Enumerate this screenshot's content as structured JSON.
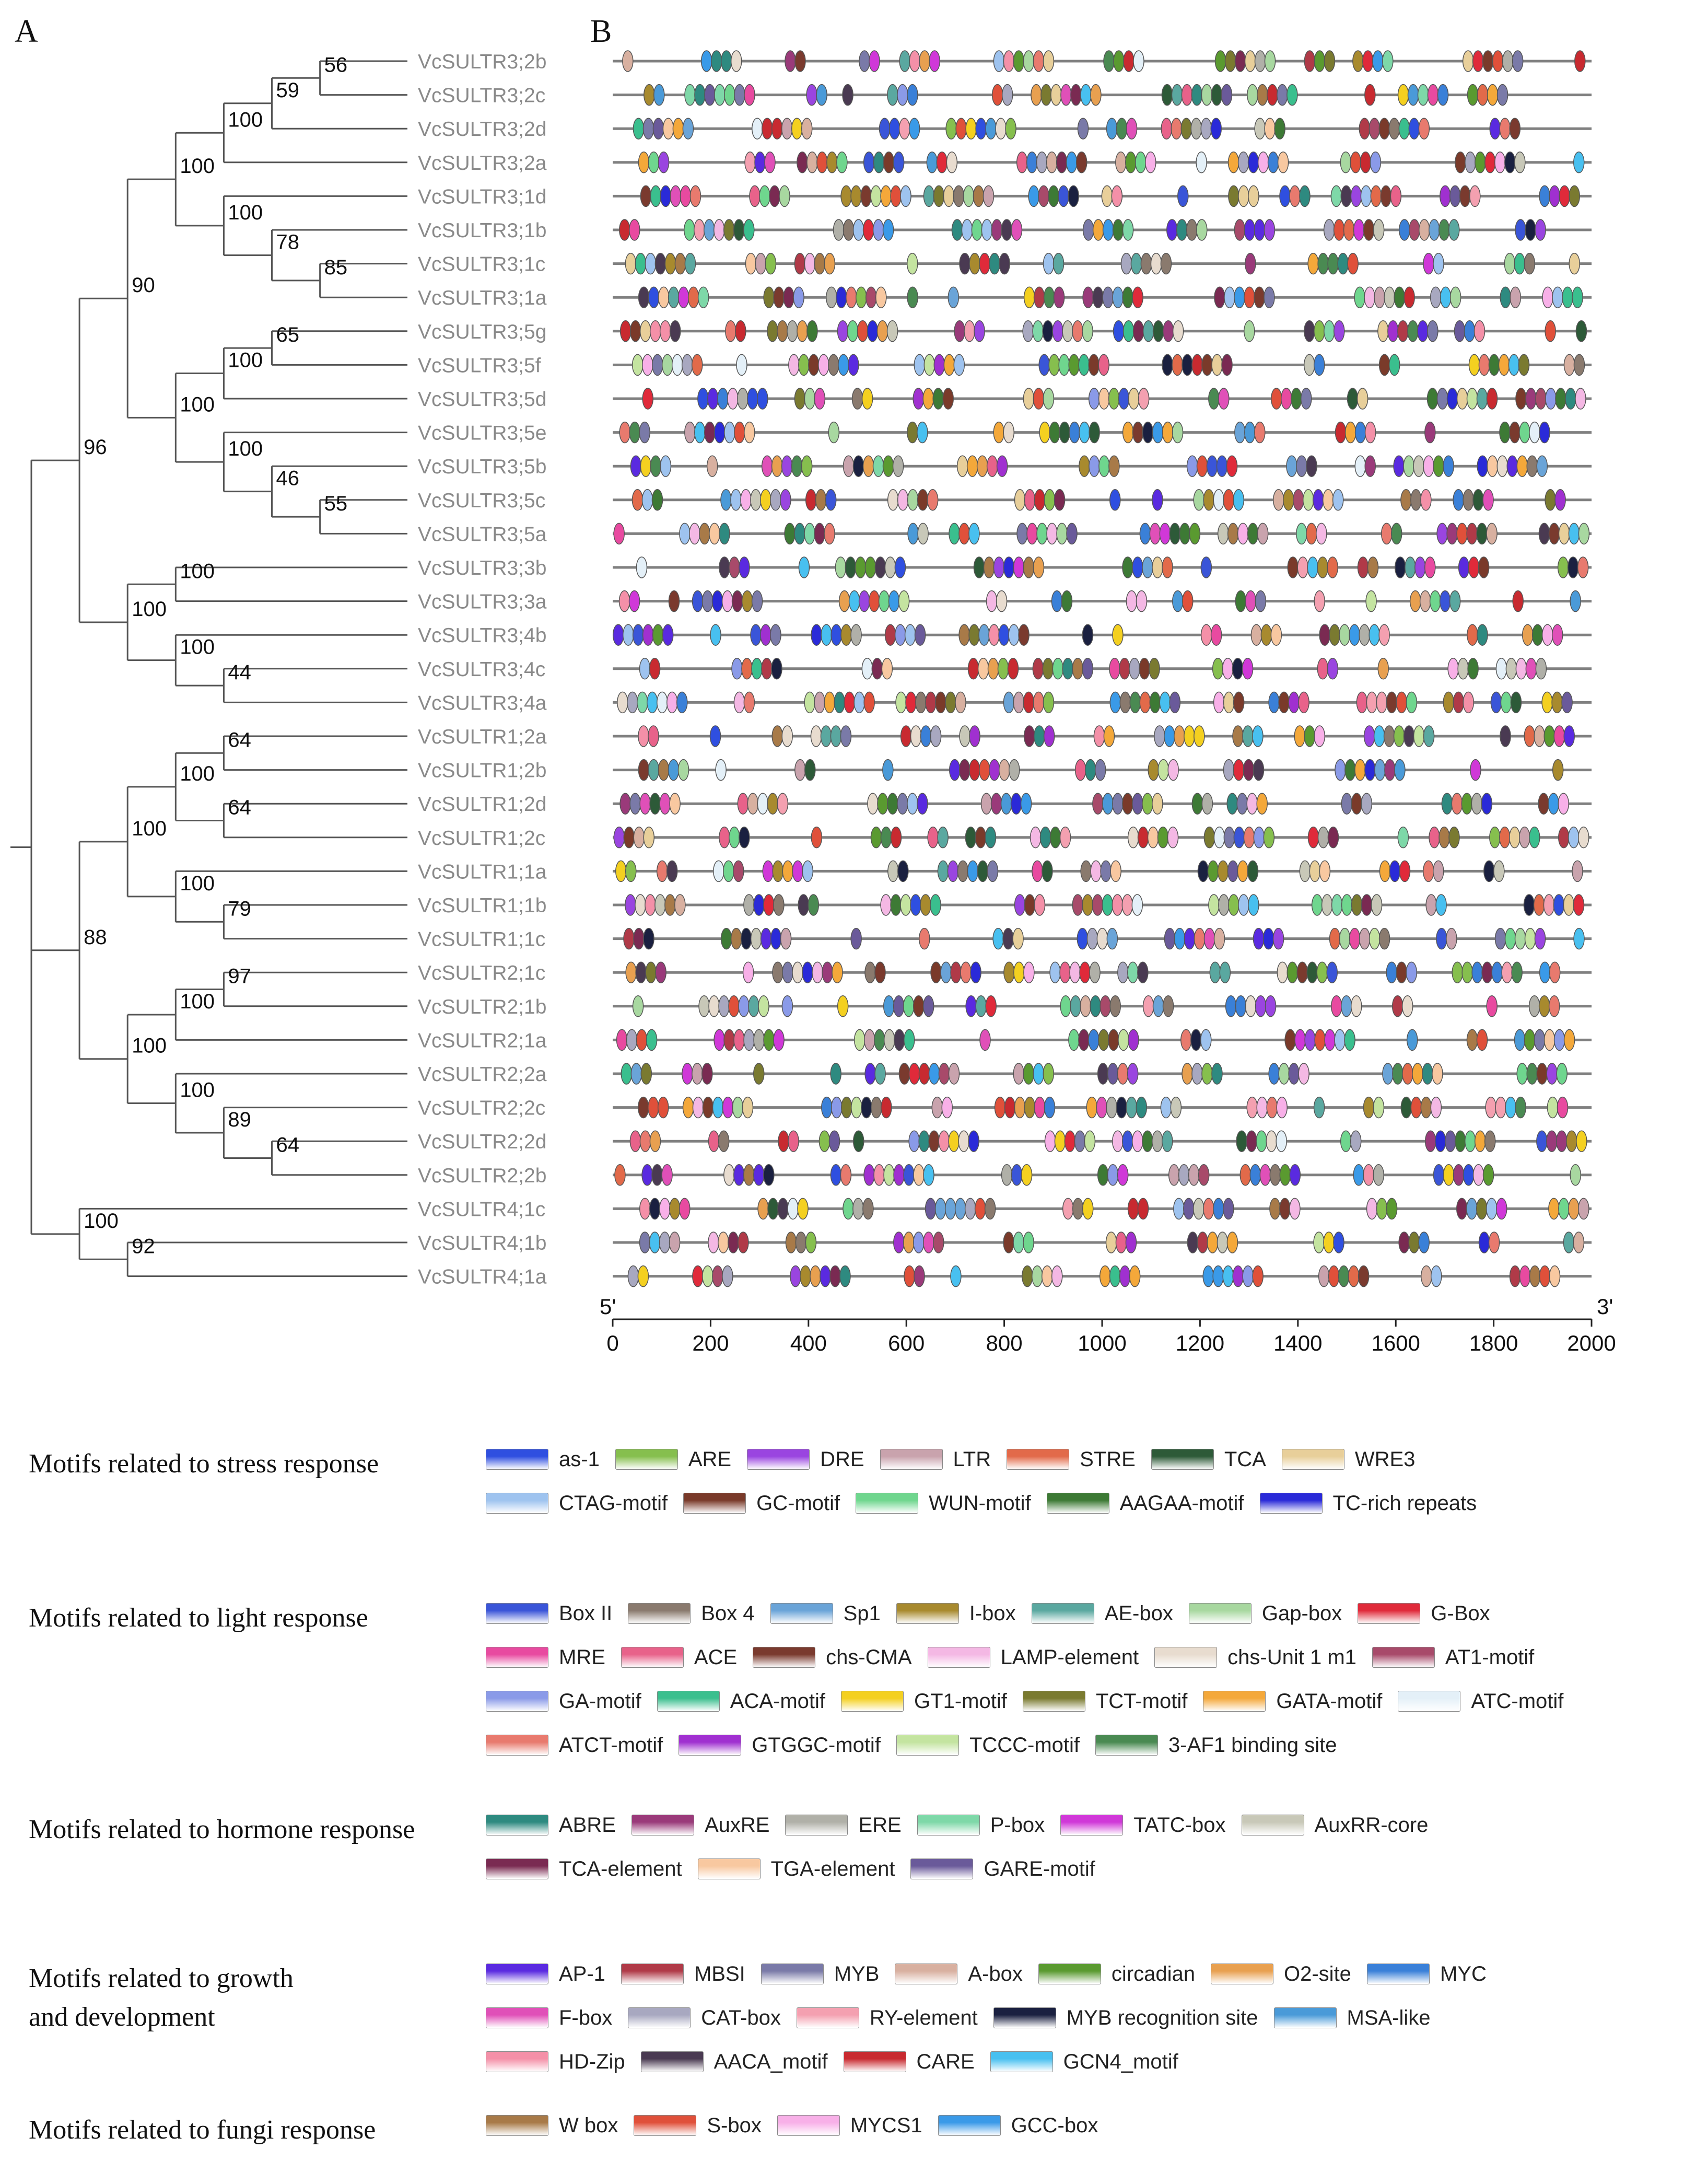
{
  "panel_labels": {
    "a": "A",
    "b": "B"
  },
  "genes": [
    {
      "name": "VcSULTR3;2b"
    },
    {
      "name": "VcSULTR3;2c"
    },
    {
      "name": "VcSULTR3;2d"
    },
    {
      "name": "VcSULTR3;2a"
    },
    {
      "name": "VcSULTR3;1d"
    },
    {
      "name": "VcSULTR3;1b"
    },
    {
      "name": "VcSULTR3;1c"
    },
    {
      "name": "VcSULTR3;1a"
    },
    {
      "name": "VcSULTR3;5g"
    },
    {
      "name": "VcSULTR3;5f"
    },
    {
      "name": "VcSULTR3;5d"
    },
    {
      "name": "VcSULTR3;5e"
    },
    {
      "name": "VcSULTR3;5b"
    },
    {
      "name": "VcSULTR3;5c"
    },
    {
      "name": "VcSULTR3;5a"
    },
    {
      "name": "VcSULTR3;3b"
    },
    {
      "name": "VcSULTR3;3a"
    },
    {
      "name": "VcSULTR3;4b"
    },
    {
      "name": "VcSULTR3;4c"
    },
    {
      "name": "VcSULTR3;4a"
    },
    {
      "name": "VcSULTR1;2a"
    },
    {
      "name": "VcSULTR1;2b"
    },
    {
      "name": "VcSULTR1;2d"
    },
    {
      "name": "VcSULTR1;2c"
    },
    {
      "name": "VcSULTR1;1a"
    },
    {
      "name": "VcSULTR1;1b"
    },
    {
      "name": "VcSULTR1;1c"
    },
    {
      "name": "VcSULTR2;1c"
    },
    {
      "name": "VcSULTR2;1b"
    },
    {
      "name": "VcSULTR2;1a"
    },
    {
      "name": "VcSULTR2;2a"
    },
    {
      "name": "VcSULTR2;2c"
    },
    {
      "name": "VcSULTR2;2d"
    },
    {
      "name": "VcSULTR2;2b"
    },
    {
      "name": "VcSULTR4;1c"
    },
    {
      "name": "VcSULTR4;1b"
    },
    {
      "name": "VcSULTR4;1a"
    }
  ],
  "tree": {
    "children": [
      {
        "support": "96",
        "children": [
          {
            "support": "90",
            "children": [
              {
                "support": "100",
                "children": [
                  {
                    "support": "100",
                    "children": [
                      {
                        "support": "59",
                        "children": [
                          {
                            "support": "56",
                            "children": [
                              {
                                "leaf": 0
                              },
                              {
                                "leaf": 1
                              }
                            ]
                          },
                          {
                            "leaf": 2
                          }
                        ]
                      },
                      {
                        "leaf": 3
                      }
                    ]
                  },
                  {
                    "support": "100",
                    "children": [
                      {
                        "leaf": 4
                      },
                      {
                        "support": "78",
                        "children": [
                          {
                            "leaf": 5
                          },
                          {
                            "support": "85",
                            "children": [
                              {
                                "leaf": 6
                              },
                              {
                                "leaf": 7
                              }
                            ]
                          }
                        ]
                      }
                    ]
                  }
                ]
              },
              {
                "support": "100",
                "children": [
                  {
                    "support": "100",
                    "children": [
                      {
                        "support": "65",
                        "children": [
                          {
                            "leaf": 8
                          },
                          {
                            "leaf": 9
                          }
                        ]
                      },
                      {
                        "leaf": 10
                      }
                    ]
                  },
                  {
                    "support": "100",
                    "children": [
                      {
                        "leaf": 11
                      },
                      {
                        "support": "46",
                        "children": [
                          {
                            "leaf": 12
                          },
                          {
                            "support": "55",
                            "children": [
                              {
                                "leaf": 13
                              },
                              {
                                "leaf": 14
                              }
                            ]
                          }
                        ]
                      }
                    ]
                  }
                ]
              }
            ]
          },
          {
            "support": "100",
            "children": [
              {
                "support": "100",
                "children": [
                  {
                    "leaf": 15
                  },
                  {
                    "leaf": 16
                  }
                ]
              },
              {
                "support": "100",
                "children": [
                  {
                    "leaf": 17
                  },
                  {
                    "support": "44",
                    "children": [
                      {
                        "leaf": 18
                      },
                      {
                        "leaf": 19
                      }
                    ]
                  }
                ]
              }
            ]
          }
        ]
      },
      {
        "support": "88",
        "children": [
          {
            "support": "100",
            "children": [
              {
                "support": "100",
                "children": [
                  {
                    "support": "64",
                    "children": [
                      {
                        "leaf": 20
                      },
                      {
                        "leaf": 21
                      }
                    ]
                  },
                  {
                    "support": "64",
                    "children": [
                      {
                        "leaf": 22
                      },
                      {
                        "leaf": 23
                      }
                    ]
                  }
                ]
              },
              {
                "support": "100",
                "children": [
                  {
                    "leaf": 24
                  },
                  {
                    "support": "79",
                    "children": [
                      {
                        "leaf": 25
                      },
                      {
                        "leaf": 26
                      }
                    ]
                  }
                ]
              }
            ]
          },
          {
            "support": "100",
            "children": [
              {
                "support": "100",
                "children": [
                  {
                    "support": "97",
                    "children": [
                      {
                        "leaf": 27
                      },
                      {
                        "leaf": 28
                      }
                    ]
                  },
                  {
                    "leaf": 29
                  }
                ]
              },
              {
                "support": "100",
                "children": [
                  {
                    "leaf": 30
                  },
                  {
                    "support": "89",
                    "children": [
                      {
                        "leaf": 31
                      },
                      {
                        "support": "64",
                        "children": [
                          {
                            "leaf": 32
                          },
                          {
                            "leaf": 33
                          }
                        ]
                      }
                    ]
                  }
                ]
              }
            ]
          }
        ]
      },
      {
        "support": "100",
        "children": [
          {
            "leaf": 34
          },
          {
            "support": "92",
            "children": [
              {
                "leaf": 35
              },
              {
                "leaf": 36
              }
            ]
          }
        ]
      }
    ]
  },
  "axis": {
    "min": 0,
    "max": 2000,
    "ticks": [
      "0",
      "200",
      "400",
      "600",
      "800",
      "1000",
      "1200",
      "1400",
      "1600",
      "1800",
      "2000"
    ],
    "left_end_label": "5'",
    "right_end_label": "3'"
  },
  "legend_groups": [
    {
      "title": "Motifs related to stress response",
      "rows": [
        [
          {
            "label": "as-1",
            "color": "#2f4fe0"
          },
          {
            "label": "ARE",
            "color": "#86bf4e"
          },
          {
            "label": "DRE",
            "color": "#9a45e0"
          },
          {
            "label": "LTR",
            "color": "#c9a3ad"
          },
          {
            "label": "STRE",
            "color": "#e26a4a"
          },
          {
            "label": "TCA",
            "color": "#2d5a38"
          },
          {
            "label": "WRE3",
            "color": "#e8cf9a"
          }
        ],
        [
          {
            "label": "CTAG-motif",
            "color": "#9ec3ef"
          },
          {
            "label": "GC-motif",
            "color": "#7a3a2a"
          },
          {
            "label": "WUN-motif",
            "color": "#6fd68e"
          },
          {
            "label": "AAGAA-motif",
            "color": "#3d7a35"
          },
          {
            "label": "TC-rich repeats",
            "color": "#2a2ad8"
          }
        ]
      ]
    },
    {
      "title": "Motifs related to light response",
      "rows": [
        [
          {
            "label": "Box II",
            "color": "#3a55d8"
          },
          {
            "label": "Box 4",
            "color": "#8a7a6e"
          },
          {
            "label": "Sp1",
            "color": "#6aa4d8"
          },
          {
            "label": "I-box",
            "color": "#a88a2e"
          },
          {
            "label": "AE-box",
            "color": "#5aa8a0"
          },
          {
            "label": "Gap-box",
            "color": "#a8d8a0"
          },
          {
            "label": "G-Box",
            "color": "#e02a3a"
          }
        ],
        [
          {
            "label": "MRE",
            "color": "#e84aa0"
          },
          {
            "label": "ACE",
            "color": "#e8628a"
          },
          {
            "label": "chs-CMA",
            "color": "#7a3a2e"
          },
          {
            "label": "LAMP-element",
            "color": "#f4b8e4"
          },
          {
            "label": "chs-Unit 1 m1",
            "color": "#e8dccf"
          },
          {
            "label": "AT1-motif",
            "color": "#a84a6a"
          }
        ],
        [
          {
            "label": "GA-motif",
            "color": "#8a9ae8"
          },
          {
            "label": "ACA-motif",
            "color": "#3abf8e"
          },
          {
            "label": "GT1-motif",
            "color": "#f4d020"
          },
          {
            "label": "TCT-motif",
            "color": "#7a7a30"
          },
          {
            "label": "GATA-motif",
            "color": "#f4a83a"
          },
          {
            "label": "ATC-motif",
            "color": "#e4f0f8"
          }
        ],
        [
          {
            "label": "ATCT-motif",
            "color": "#e87a6e"
          },
          {
            "label": "GTGGC-motif",
            "color": "#a030d0"
          },
          {
            "label": "TCCC-motif",
            "color": "#c4e4a0"
          },
          {
            "label": "3-AF1 binding site",
            "color": "#4a8a52"
          }
        ]
      ]
    },
    {
      "title": "Motifs related to hormone response",
      "rows": [
        [
          {
            "label": "ABRE",
            "color": "#2e8a80"
          },
          {
            "label": "AuxRE",
            "color": "#9a3a7a"
          },
          {
            "label": "ERE",
            "color": "#b0b0a8"
          },
          {
            "label": "P-box",
            "color": "#7ed8a8"
          },
          {
            "label": "TATC-box",
            "color": "#d038d8"
          },
          {
            "label": "AuxRR-core",
            "color": "#c8c8b8"
          }
        ],
        [
          {
            "label": "TCA-element",
            "color": "#7a2a52"
          },
          {
            "label": "TGA-element",
            "color": "#f8c8a0"
          },
          {
            "label": "GARE-motif",
            "color": "#6a5a9a"
          }
        ]
      ]
    },
    {
      "title": "Motifs related to growth\nand development",
      "rows": [
        [
          {
            "label": "AP-1",
            "color": "#5a2ae0"
          },
          {
            "label": "MBSI",
            "color": "#b03a48"
          },
          {
            "label": "MYB",
            "color": "#7a7aa8"
          },
          {
            "label": "A-box",
            "color": "#d8b0a0"
          },
          {
            "label": "circadian",
            "color": "#5a9a30"
          },
          {
            "label": "O2-site",
            "color": "#e8a050"
          },
          {
            "label": "MYC",
            "color": "#3a80d8"
          }
        ],
        [
          {
            "label": "F-box",
            "color": "#e050b8"
          },
          {
            "label": "CAT-box",
            "color": "#a8a8c0"
          },
          {
            "label": "RY-element",
            "color": "#f4a0b0"
          },
          {
            "label": "MYB recognition site",
            "color": "#1a2040"
          },
          {
            "label": "MSA-like",
            "color": "#4a9ad8"
          }
        ],
        [
          {
            "label": "HD-Zip",
            "color": "#f490a8"
          },
          {
            "label": "AACA_motif",
            "color": "#4a3a52"
          },
          {
            "label": "CARE",
            "color": "#c82a30"
          },
          {
            "label": "GCN4_motif",
            "color": "#48c0f0"
          }
        ]
      ]
    },
    {
      "title": "Motifs related to fungi response",
      "rows": [
        [
          {
            "label": "W box",
            "color": "#a87a48"
          },
          {
            "label": "S-box",
            "color": "#e0503a"
          },
          {
            "label": "MYCS1",
            "color": "#f8b0e8"
          },
          {
            "label": "GCC-box",
            "color": "#3a9ae8"
          }
        ]
      ]
    }
  ]
}
